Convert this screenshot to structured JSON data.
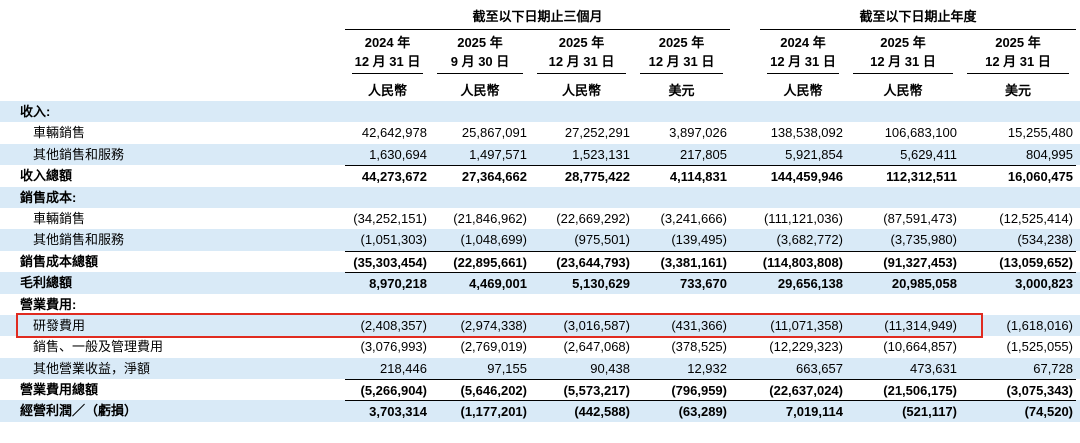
{
  "table": {
    "stripe_color": "#d9eaf7",
    "highlight_color": "#e02b20",
    "groups": [
      {
        "label": "截至以下日期止三個月"
      },
      {
        "label": "截至以下日期止年度"
      }
    ],
    "columns": [
      {
        "year": "2024 年",
        "date": "12 月 31 日",
        "currency": "人民幣"
      },
      {
        "year": "2025 年",
        "date": "9 月 30 日",
        "currency": "人民幣"
      },
      {
        "year": "2025 年",
        "date": "12 月 31 日",
        "currency": "人民幣"
      },
      {
        "year": "2025 年",
        "date": "12 月 31 日",
        "currency": "美元"
      },
      {
        "year": "2024 年",
        "date": "12 月 31 日",
        "currency": "人民幣"
      },
      {
        "year": "2025 年",
        "date": "12 月 31 日",
        "currency": "人民幣"
      },
      {
        "year": "2025 年",
        "date": "12 月 31 日",
        "currency": "美元"
      }
    ],
    "rows": [
      {
        "label": "收入:",
        "type": "section",
        "values": []
      },
      {
        "label": "車輛銷售",
        "type": "item",
        "values": [
          "42,642,978",
          "25,867,091",
          "27,252,291",
          "3,897,026",
          "138,538,092",
          "106,683,100",
          "15,255,480"
        ]
      },
      {
        "label": "其他銷售和服務",
        "type": "item",
        "values": [
          "1,630,694",
          "1,497,571",
          "1,523,131",
          "217,805",
          "5,921,854",
          "5,629,411",
          "804,995"
        ]
      },
      {
        "label": "收入總額",
        "type": "total",
        "rule": true,
        "values": [
          "44,273,672",
          "27,364,662",
          "28,775,422",
          "4,114,831",
          "144,459,946",
          "112,312,511",
          "16,060,475"
        ]
      },
      {
        "label": "銷售成本:",
        "type": "section",
        "values": []
      },
      {
        "label": "車輛銷售",
        "type": "item",
        "values": [
          "(34,252,151)",
          "(21,846,962)",
          "(22,669,292)",
          "(3,241,666)",
          "(111,121,036)",
          "(87,591,473)",
          "(12,525,414)"
        ]
      },
      {
        "label": "其他銷售和服務",
        "type": "item",
        "values": [
          "(1,051,303)",
          "(1,048,699)",
          "(975,501)",
          "(139,495)",
          "(3,682,772)",
          "(3,735,980)",
          "(534,238)"
        ]
      },
      {
        "label": "銷售成本總額",
        "type": "total",
        "rule": true,
        "values": [
          "(35,303,454)",
          "(22,895,661)",
          "(23,644,793)",
          "(3,381,161)",
          "(114,803,808)",
          "(91,327,453)",
          "(13,059,652)"
        ]
      },
      {
        "label": "毛利總額",
        "type": "total",
        "rule": true,
        "values": [
          "8,970,218",
          "4,469,001",
          "5,130,629",
          "733,670",
          "29,656,138",
          "20,985,058",
          "3,000,823"
        ]
      },
      {
        "label": "營業費用:",
        "type": "section",
        "values": []
      },
      {
        "label": "研發費用",
        "type": "item",
        "highlight": true,
        "values": [
          "(2,408,357)",
          "(2,974,338)",
          "(3,016,587)",
          "(431,366)",
          "(11,071,358)",
          "(11,314,949)",
          "(1,618,016)"
        ]
      },
      {
        "label": "銷售、一般及管理費用",
        "type": "item",
        "values": [
          "(3,076,993)",
          "(2,769,019)",
          "(2,647,068)",
          "(378,525)",
          "(12,229,323)",
          "(10,664,857)",
          "(1,525,055)"
        ]
      },
      {
        "label": "其他營業收益，淨額",
        "type": "item",
        "values": [
          "218,446",
          "97,155",
          "90,438",
          "12,932",
          "663,657",
          "473,631",
          "67,728"
        ]
      },
      {
        "label": "營業費用總額",
        "type": "total",
        "rule": true,
        "values": [
          "(5,266,904)",
          "(5,646,202)",
          "(5,573,217)",
          "(796,959)",
          "(22,637,024)",
          "(21,506,175)",
          "(3,075,343)"
        ]
      },
      {
        "label": "經營利潤／（虧損）",
        "type": "total",
        "rule": true,
        "values": [
          "3,703,314",
          "(1,177,201)",
          "(442,588)",
          "(63,289)",
          "7,019,114",
          "(521,117)",
          "(74,520)"
        ]
      }
    ]
  }
}
